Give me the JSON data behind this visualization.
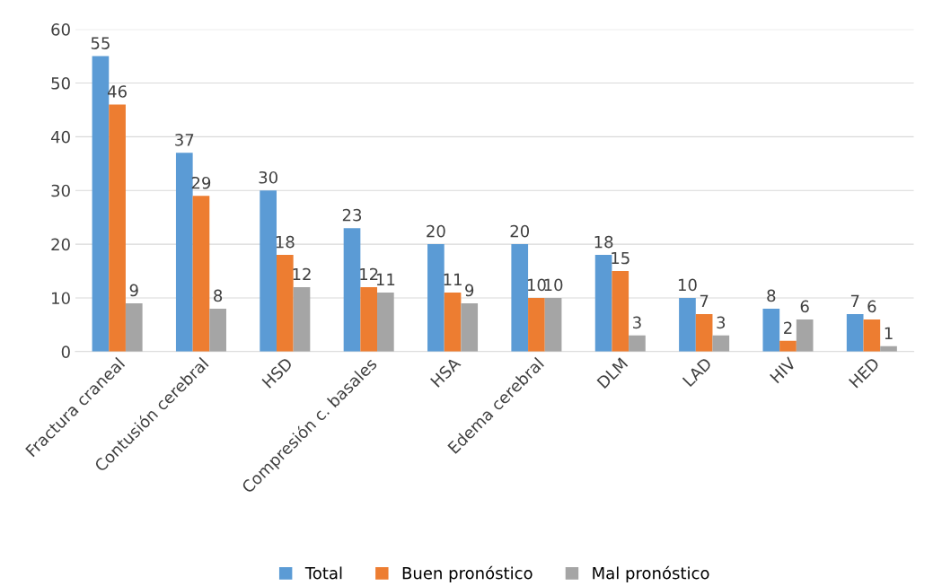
{
  "chart_data": {
    "type": "bar",
    "categories": [
      "Fractura craneal",
      "Contusión cerebral",
      "HSD",
      "Compresión c. basales",
      "HSA",
      "Edema cerebral",
      "DLM",
      "LAD",
      "HIV",
      "HED"
    ],
    "series": [
      {
        "name": "Total",
        "color": "#5b9bd5",
        "values": [
          55,
          37,
          30,
          23,
          20,
          20,
          18,
          10,
          8,
          7
        ]
      },
      {
        "name": "Buen pronóstico",
        "color": "#ed7d31",
        "values": [
          46,
          29,
          18,
          12,
          11,
          10,
          15,
          7,
          2,
          6
        ]
      },
      {
        "name": "Mal pronóstico",
        "color": "#a5a5a5",
        "values": [
          9,
          8,
          12,
          11,
          9,
          10,
          3,
          3,
          6,
          1
        ]
      }
    ],
    "ylim": [
      0,
      60
    ],
    "yticks": [
      0,
      10,
      20,
      30,
      40,
      50,
      60
    ],
    "grid": "y",
    "legend": "bottom",
    "data_labels": true
  }
}
